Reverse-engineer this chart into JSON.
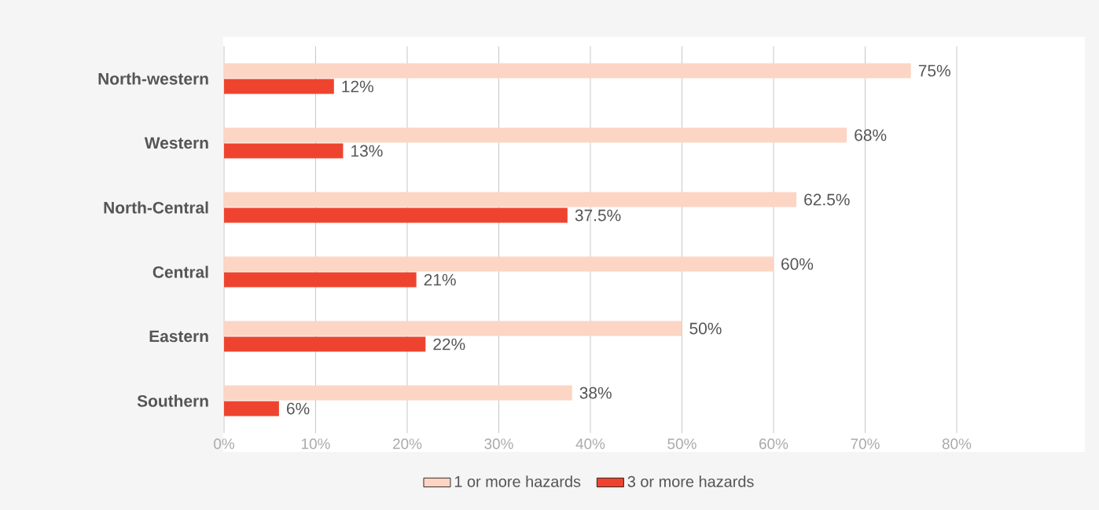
{
  "chart_data": {
    "type": "bar",
    "orientation": "horizontal",
    "categories": [
      "North-western",
      "Western",
      "North-Central",
      "Central",
      "Eastern",
      "Southern"
    ],
    "series": [
      {
        "name": "1 or more hazards",
        "color": "#fcd5c4",
        "values": [
          75,
          68,
          62.5,
          60,
          50,
          38
        ],
        "value_labels": [
          "75%",
          "68%",
          "62.5%",
          "60%",
          "50%",
          "38%"
        ]
      },
      {
        "name": "3 or more hazards",
        "color": "#ee442f",
        "values": [
          12,
          13,
          37.5,
          21,
          22,
          6
        ],
        "value_labels": [
          "12%",
          "13%",
          "37.5%",
          "21%",
          "22%",
          "6%"
        ]
      }
    ],
    "xlim": [
      0,
      80
    ],
    "xticks": [
      {
        "value": 0,
        "label": "0%"
      },
      {
        "value": 10,
        "label": "10%"
      },
      {
        "value": 20,
        "label": "20%"
      },
      {
        "value": 30,
        "label": "30%"
      },
      {
        "value": 40,
        "label": "40%"
      },
      {
        "value": 50,
        "label": "50%"
      },
      {
        "value": 60,
        "label": "60%"
      },
      {
        "value": 70,
        "label": "70%"
      },
      {
        "value": 80,
        "label": "80%"
      }
    ],
    "grid": "x",
    "legend": "bottom"
  }
}
